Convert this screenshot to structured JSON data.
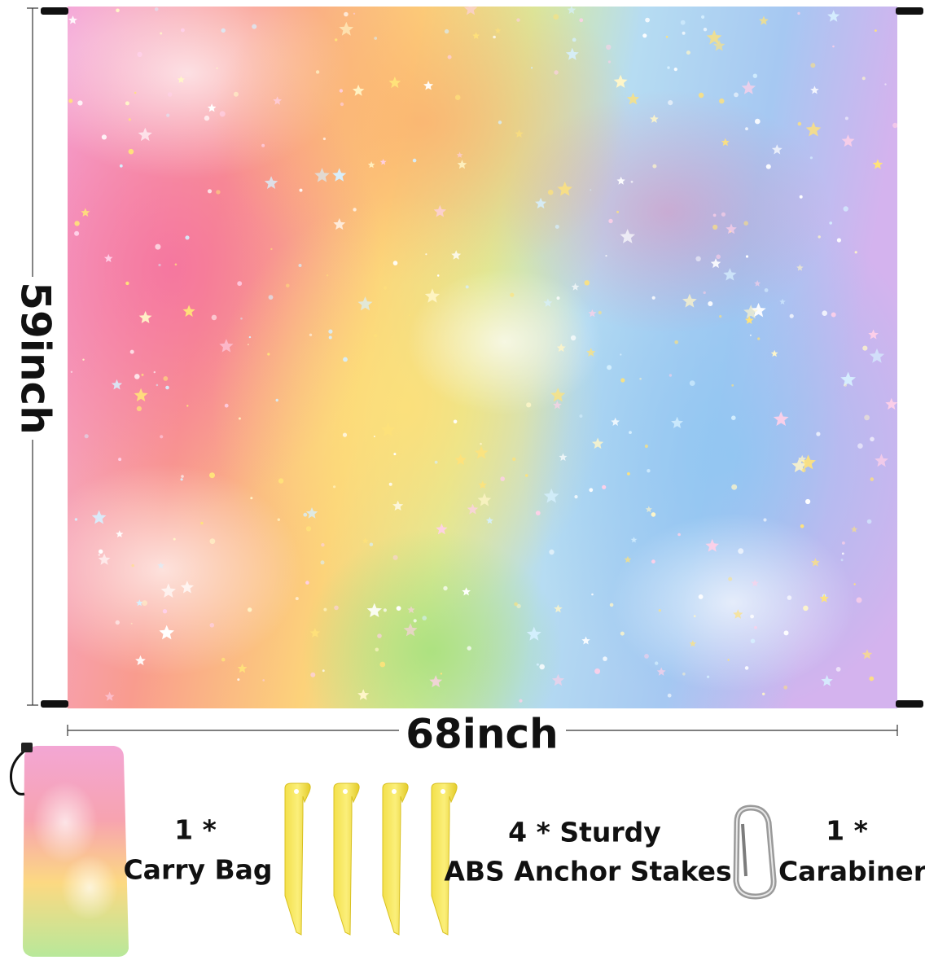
{
  "dimensions": {
    "height": "59inch",
    "width": "68inch"
  },
  "accessories": [
    {
      "count": "1 *",
      "label": "Carry Bag"
    },
    {
      "count": "4 * Sturdy",
      "label": "ABS Anchor Stakes"
    },
    {
      "count": "1 *",
      "label": "Carabiner"
    }
  ]
}
